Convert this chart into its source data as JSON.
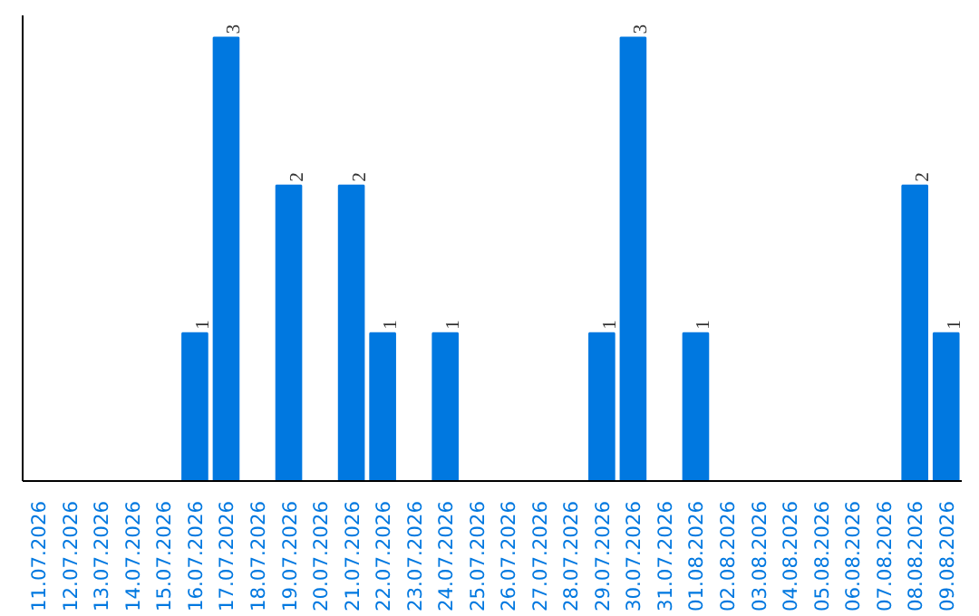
{
  "chart_data": {
    "type": "bar",
    "categories": [
      "11.07.2026",
      "12.07.2026",
      "13.07.2026",
      "14.07.2026",
      "15.07.2026",
      "16.07.2026",
      "17.07.2026",
      "18.07.2026",
      "19.07.2026",
      "20.07.2026",
      "21.07.2026",
      "22.07.2026",
      "23.07.2026",
      "24.07.2026",
      "25.07.2026",
      "26.07.2026",
      "27.07.2026",
      "28.07.2026",
      "29.07.2026",
      "30.07.2026",
      "31.07.2026",
      "01.08.2026",
      "02.08.2026",
      "03.08.2026",
      "04.08.2026",
      "05.08.2026",
      "06.08.2026",
      "07.08.2026",
      "08.08.2026",
      "09.08.2026"
    ],
    "values": [
      0,
      0,
      0,
      0,
      0,
      1,
      3,
      0,
      2,
      0,
      2,
      1,
      0,
      1,
      0,
      0,
      0,
      0,
      1,
      3,
      0,
      1,
      0,
      0,
      0,
      0,
      0,
      0,
      2,
      1
    ],
    "value_labels": [
      null,
      null,
      null,
      null,
      null,
      "1",
      "3",
      null,
      "2",
      null,
      "2",
      "1",
      null,
      "1",
      null,
      null,
      null,
      null,
      "1",
      "3",
      null,
      "1",
      null,
      null,
      null,
      null,
      null,
      null,
      "2",
      "1"
    ],
    "color": "#0078e0",
    "ylim": [
      0,
      3.15
    ],
    "tick_labels": "x",
    "grid": false
  }
}
